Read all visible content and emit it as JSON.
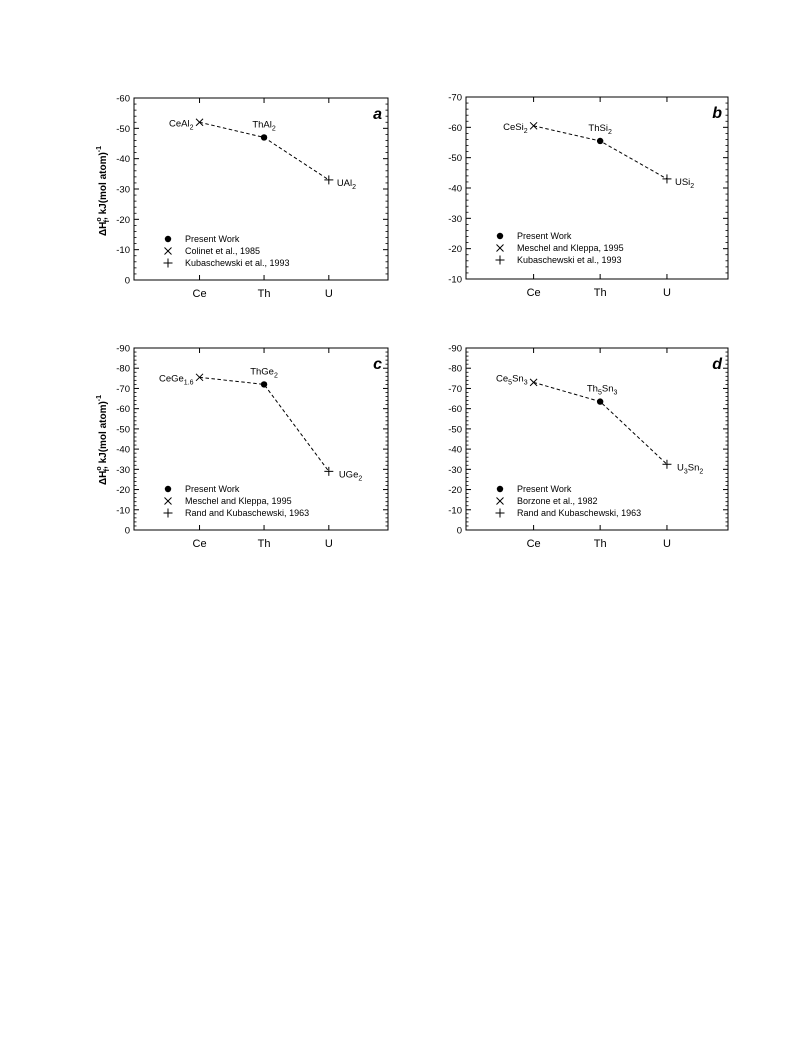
{
  "figure": {
    "ylabel_main": "ΔH",
    "ylabel_sup": "o",
    "ylabel_sub": "f",
    "ylabel_rest": ", kJ(mol atom)",
    "ylabel_exp": "-1"
  },
  "chart_data": [
    {
      "type": "line",
      "panel_letter": "a",
      "categories": [
        "Ce",
        "Th",
        "U"
      ],
      "ylim": [
        0,
        -60
      ],
      "yticks": [
        0,
        -10,
        -20,
        -30,
        -40,
        -50,
        -60
      ],
      "ytick_labels": [
        "0",
        "-10",
        "-20",
        "-30",
        "-40",
        "-50",
        "-60"
      ],
      "series": [
        {
          "name": "Present Work",
          "marker": "dot",
          "points": [
            {
              "x": "Th",
              "y": -47
            }
          ]
        },
        {
          "name": "Colinet et al., 1985",
          "marker": "x",
          "points": [
            {
              "x": "Ce",
              "y": -52
            }
          ]
        },
        {
          "name": "Kubaschewski et al., 1993",
          "marker": "plus",
          "points": [
            {
              "x": "U",
              "y": -33
            }
          ]
        }
      ],
      "dashed_line": [
        -52,
        -47,
        -33
      ],
      "point_labels": [
        {
          "base": "CeAl",
          "sub": "2",
          "at": "Ce"
        },
        {
          "base": "ThAl",
          "sub": "2",
          "at": "Th"
        },
        {
          "base": "UAl",
          "sub": "2",
          "at": "U"
        }
      ]
    },
    {
      "type": "line",
      "panel_letter": "b",
      "categories": [
        "Ce",
        "Th",
        "U"
      ],
      "ylim": [
        -10,
        -70
      ],
      "yticks": [
        -10,
        -20,
        -30,
        -40,
        -50,
        -60,
        -70
      ],
      "ytick_labels": [
        "-10",
        "-20",
        "-30",
        "-40",
        "-50",
        "-60",
        "-70"
      ],
      "series": [
        {
          "name": "Present Work",
          "marker": "dot",
          "points": [
            {
              "x": "Th",
              "y": -55.5
            }
          ]
        },
        {
          "name": "Meschel and Kleppa, 1995",
          "marker": "x",
          "points": [
            {
              "x": "Ce",
              "y": -60.5
            }
          ]
        },
        {
          "name": "Kubaschewski et al., 1993",
          "marker": "plus",
          "points": [
            {
              "x": "U",
              "y": -43
            }
          ]
        }
      ],
      "dashed_line": [
        -60.5,
        -55.5,
        -43
      ],
      "point_labels": [
        {
          "base": "CeSi",
          "sub": "2",
          "at": "Ce"
        },
        {
          "base": "ThSi",
          "sub": "2",
          "at": "Th"
        },
        {
          "base": "USi",
          "sub": "2",
          "at": "U"
        }
      ]
    },
    {
      "type": "line",
      "panel_letter": "c",
      "categories": [
        "Ce",
        "Th",
        "U"
      ],
      "ylim": [
        0,
        -90
      ],
      "yticks": [
        0,
        -10,
        -20,
        -30,
        -40,
        -50,
        -60,
        -70,
        -80,
        -90
      ],
      "ytick_labels": [
        "0",
        "-10",
        "-20",
        "-30",
        "-40",
        "-50",
        "-60",
        "-70",
        "-80",
        "-90"
      ],
      "series": [
        {
          "name": "Present Work",
          "marker": "dot",
          "points": [
            {
              "x": "Th",
              "y": -72
            }
          ]
        },
        {
          "name": "Meschel and Kleppa, 1995",
          "marker": "x",
          "points": [
            {
              "x": "Ce",
              "y": -75.5
            }
          ]
        },
        {
          "name": "Rand and Kubaschewski, 1963",
          "marker": "plus",
          "points": [
            {
              "x": "U",
              "y": -29
            }
          ]
        }
      ],
      "dashed_line": [
        -75.5,
        -72,
        -29
      ],
      "point_labels": [
        {
          "base": "CeGe",
          "sub": "1.6",
          "at": "Ce"
        },
        {
          "base": "ThGe",
          "sub": "2",
          "at": "Th"
        },
        {
          "base": "UGe",
          "sub": "2",
          "at": "U"
        }
      ]
    },
    {
      "type": "line",
      "panel_letter": "d",
      "categories": [
        "Ce",
        "Th",
        "U"
      ],
      "ylim": [
        0,
        -90
      ],
      "yticks": [
        0,
        -10,
        -20,
        -30,
        -40,
        -50,
        -60,
        -70,
        -80,
        -90
      ],
      "ytick_labels": [
        "0",
        "-10",
        "-20",
        "-30",
        "-40",
        "-50",
        "-60",
        "-70",
        "-80",
        "-90"
      ],
      "series": [
        {
          "name": "Present Work",
          "marker": "dot",
          "points": [
            {
              "x": "Th",
              "y": -63.5
            }
          ]
        },
        {
          "name": "Borzone et al., 1982",
          "marker": "x",
          "points": [
            {
              "x": "Ce",
              "y": -73
            }
          ]
        },
        {
          "name": "Rand and Kubaschewski, 1963",
          "marker": "plus",
          "points": [
            {
              "x": "U",
              "y": -32.5
            }
          ]
        }
      ],
      "dashed_line": [
        -73,
        -63.5,
        -32.5
      ],
      "point_labels": [
        {
          "parts": [
            {
              "t": "Ce"
            },
            {
              "t": "5",
              "sub": true
            },
            {
              "t": "Sn"
            },
            {
              "t": "3",
              "sub": true
            }
          ],
          "at": "Ce"
        },
        {
          "parts": [
            {
              "t": "Th"
            },
            {
              "t": "5",
              "sub": true
            },
            {
              "t": "Sn"
            },
            {
              "t": "3",
              "sub": true
            }
          ],
          "at": "Th"
        },
        {
          "parts": [
            {
              "t": "U"
            },
            {
              "t": "3",
              "sub": true
            },
            {
              "t": "Sn"
            },
            {
              "t": "2",
              "sub": true
            }
          ],
          "at": "U"
        }
      ]
    }
  ]
}
